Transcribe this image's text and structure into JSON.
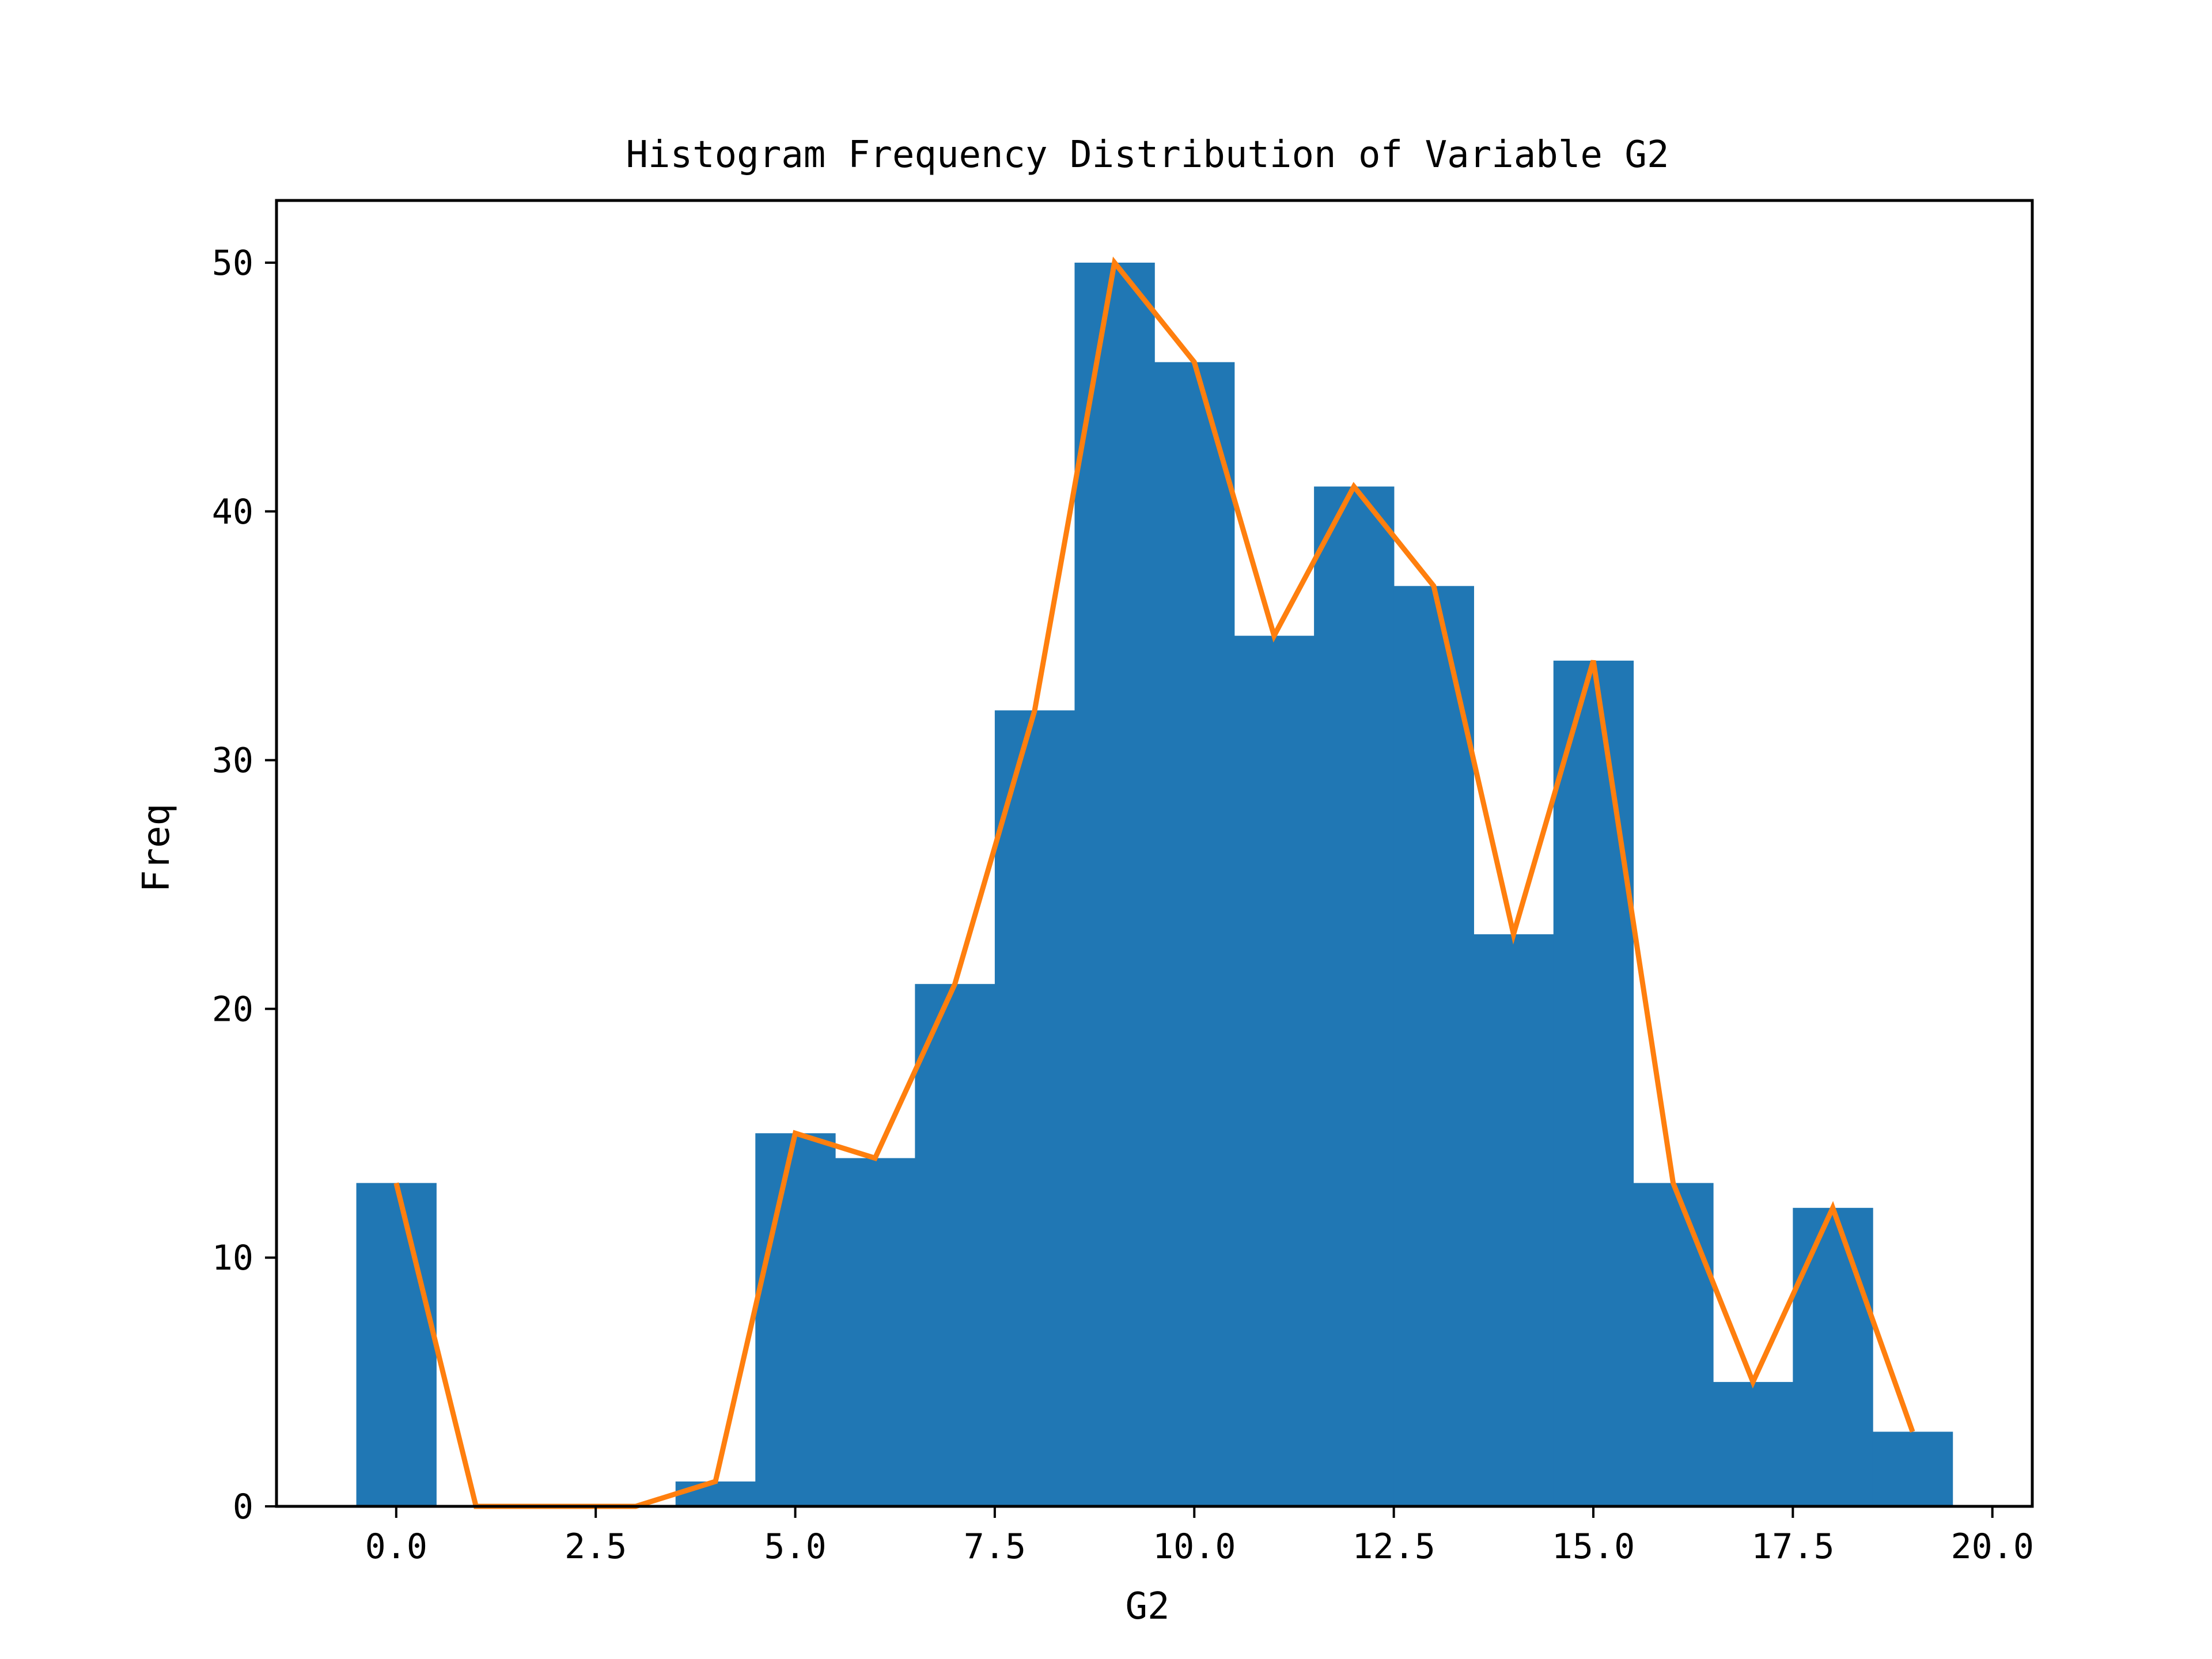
{
  "chart_data": {
    "type": "bar",
    "title": "Histogram Frequency Distribution of Variable G2",
    "xlabel": "G2",
    "ylabel": "Freq",
    "xlim": [
      -1.5,
      20.5
    ],
    "ylim": [
      0,
      52.5
    ],
    "x_ticks": [
      0.0,
      2.5,
      5.0,
      7.5,
      10.0,
      12.5,
      15.0,
      17.5,
      20.0
    ],
    "x_tick_labels": [
      "0.0",
      "2.5",
      "5.0",
      "7.5",
      "10.0",
      "12.5",
      "15.0",
      "17.5",
      "20.0"
    ],
    "y_ticks": [
      0,
      10,
      20,
      30,
      40,
      50
    ],
    "y_tick_labels": [
      "0",
      "10",
      "20",
      "30",
      "40",
      "50"
    ],
    "bin_width": 1,
    "bins": [
      0,
      1,
      2,
      3,
      4,
      5,
      6,
      7,
      8,
      9,
      10,
      11,
      12,
      13,
      14,
      15,
      16,
      17,
      18,
      19
    ],
    "series": [
      {
        "type": "bar",
        "color": "#2077b4",
        "values": [
          13,
          0,
          0,
          0,
          1,
          15,
          14,
          21,
          32,
          50,
          46,
          35,
          41,
          37,
          23,
          34,
          13,
          5,
          12,
          3
        ]
      },
      {
        "type": "line",
        "color": "#ff7f0e",
        "values": [
          13,
          0,
          0,
          0,
          1,
          15,
          14,
          21,
          32,
          50,
          46,
          35,
          41,
          37,
          23,
          34,
          13,
          5,
          12,
          3
        ]
      }
    ],
    "grid": false,
    "legend": "none"
  }
}
